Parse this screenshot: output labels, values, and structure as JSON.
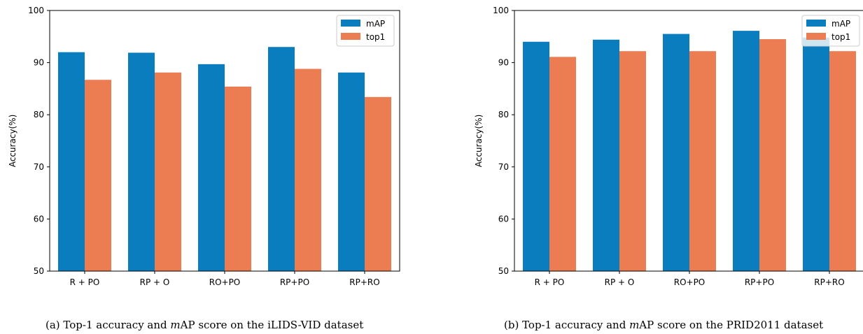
{
  "colors": {
    "map": "#0a7dbe",
    "top1": "#ec7c52",
    "axis": "#000000"
  },
  "chart_data": [
    {
      "type": "bar",
      "categories": [
        "R + PO",
        "RP + O",
        "RO+PO",
        "RP+PO",
        "RP+RO"
      ],
      "series": [
        {
          "name": "mAP",
          "values": [
            92.0,
            91.9,
            89.7,
            93.0,
            88.1
          ]
        },
        {
          "name": "top1",
          "values": [
            86.7,
            88.1,
            85.4,
            88.8,
            83.4
          ]
        }
      ],
      "ylabel": "Accuracy(%)",
      "ylim": [
        50,
        100
      ],
      "yticks": [
        50,
        60,
        70,
        80,
        90,
        100
      ],
      "legend": "top-right",
      "grid": false
    },
    {
      "type": "bar",
      "categories": [
        "R + PO",
        "RP + O",
        "RO+PO",
        "RP+PO",
        "RP+RO"
      ],
      "series": [
        {
          "name": "mAP",
          "values": [
            94.0,
            94.4,
            95.5,
            96.1,
            94.8
          ]
        },
        {
          "name": "top1",
          "values": [
            91.1,
            92.2,
            92.2,
            94.5,
            92.2
          ]
        }
      ],
      "ylabel": "Accuracy(%)",
      "ylim": [
        50,
        100
      ],
      "yticks": [
        50,
        60,
        70,
        80,
        90,
        100
      ],
      "legend": "top-right",
      "grid": false
    }
  ],
  "captions": [
    {
      "prefix": "(a)  Top-1 accuracy and ",
      "italic": "m",
      "suffix": "AP score on the iLIDS-VID dataset"
    },
    {
      "prefix": "(b)  Top-1 accuracy and ",
      "italic": "m",
      "suffix": "AP score on the PRID2011 dataset"
    }
  ]
}
